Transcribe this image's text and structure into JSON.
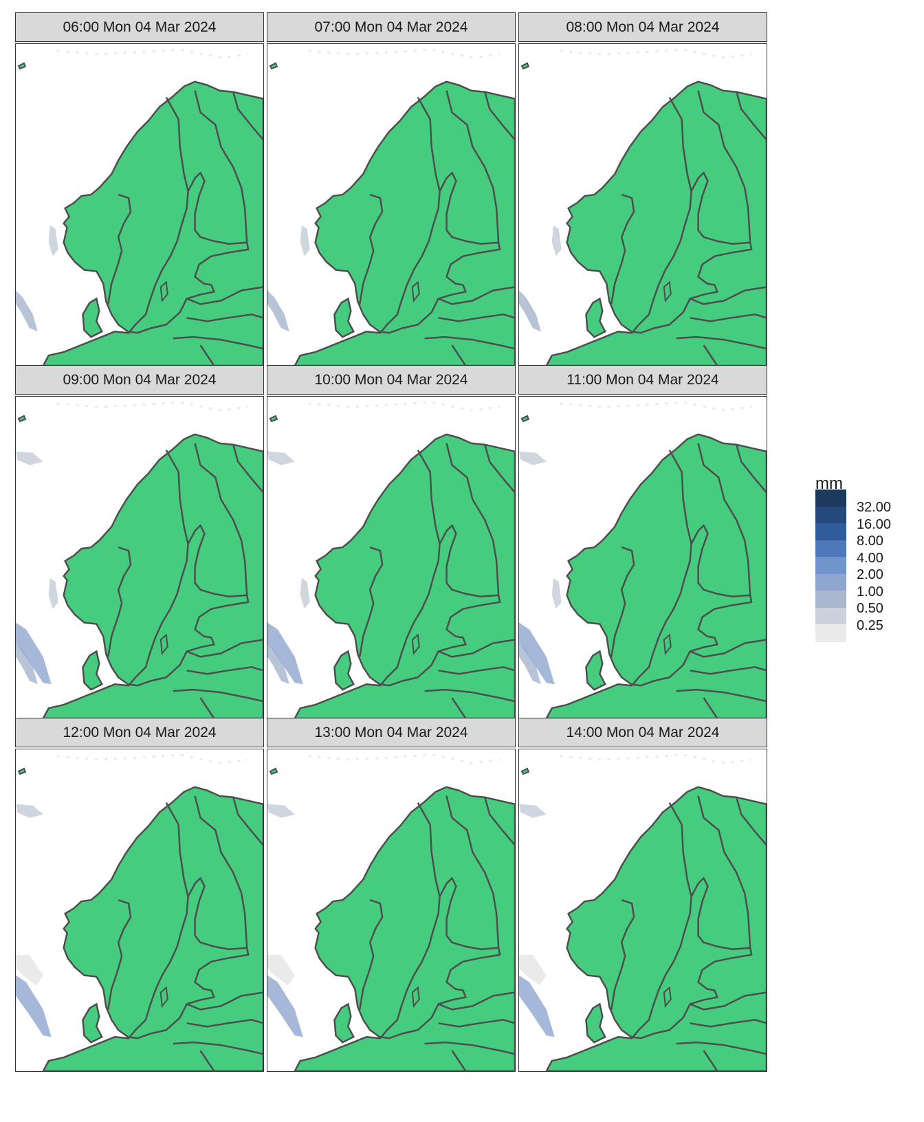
{
  "colors": {
    "land": "#45cc7e",
    "border": "#4d4d4d",
    "sea": "#ffffff",
    "strip_bg": "#d9d9d9"
  },
  "panels": [
    {
      "title": "06:00 Mon 04 Mar 2024"
    },
    {
      "title": "07:00 Mon 04 Mar 2024"
    },
    {
      "title": "08:00 Mon 04 Mar 2024"
    },
    {
      "title": "09:00 Mon 04 Mar 2024"
    },
    {
      "title": "10:00 Mon 04 Mar 2024"
    },
    {
      "title": "11:00 Mon 04 Mar 2024"
    },
    {
      "title": "12:00 Mon 04 Mar 2024"
    },
    {
      "title": "13:00 Mon 04 Mar 2024"
    },
    {
      "title": "14:00 Mon 04 Mar 2024"
    }
  ],
  "legend": {
    "title": "mm",
    "levels": [
      {
        "label": "32.00",
        "color": "#1c3a5e"
      },
      {
        "label": "16.00",
        "color": "#244a7d"
      },
      {
        "label": "8.00",
        "color": "#2f5c9a"
      },
      {
        "label": "4.00",
        "color": "#4f78ba"
      },
      {
        "label": "2.00",
        "color": "#7294cc"
      },
      {
        "label": "1.00",
        "color": "#8fa6cf"
      },
      {
        "label": "0.50",
        "color": "#aab8cf"
      },
      {
        "label": "0.25",
        "color": "#cbd1db"
      },
      {
        "label": "",
        "color": "#e9e9e9"
      }
    ]
  }
}
